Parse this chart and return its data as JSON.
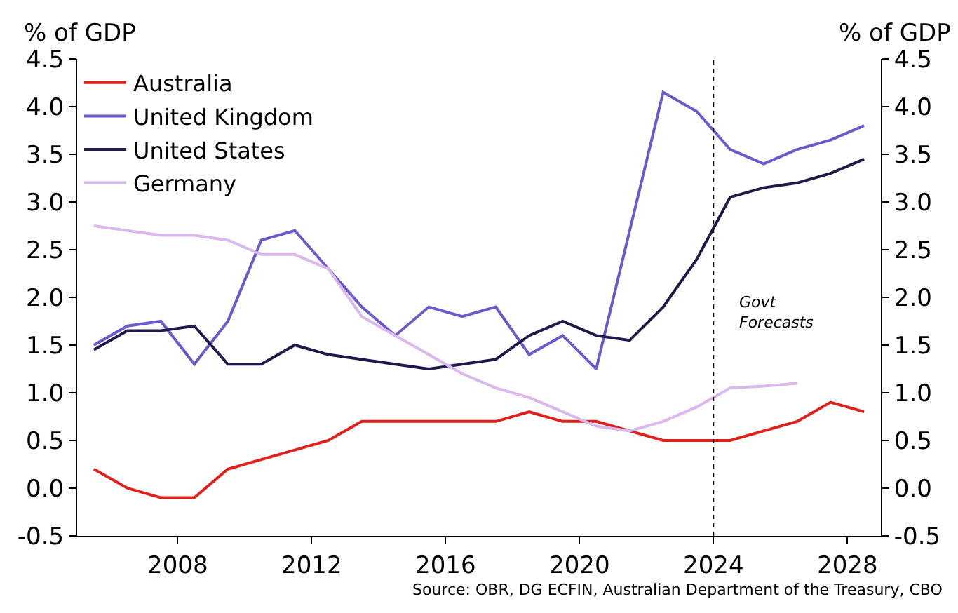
{
  "chart_data": {
    "type": "line",
    "x": [
      2005.5,
      2006.5,
      2007.5,
      2008.5,
      2009.5,
      2010.5,
      2011.5,
      2012.5,
      2013.5,
      2014.5,
      2015.5,
      2016.5,
      2017.5,
      2018.5,
      2019.5,
      2020.5,
      2021.5,
      2022.5,
      2023.5,
      2024.5,
      2025.5,
      2026.5,
      2027.5,
      2028.5
    ],
    "series": [
      {
        "name": "Australia",
        "color": "#e0201b",
        "values": [
          0.2,
          0.0,
          -0.1,
          -0.1,
          0.2,
          0.3,
          0.4,
          0.5,
          0.7,
          0.7,
          0.7,
          0.7,
          0.7,
          0.8,
          0.7,
          0.7,
          0.6,
          0.5,
          0.5,
          0.5,
          0.6,
          0.7,
          0.9,
          0.8
        ]
      },
      {
        "name": "United Kingdom",
        "color": "#6a5acd",
        "values": [
          1.5,
          1.7,
          1.75,
          1.3,
          1.75,
          2.6,
          2.7,
          2.3,
          1.9,
          1.6,
          1.9,
          1.8,
          1.9,
          1.4,
          1.6,
          1.25,
          2.7,
          4.15,
          3.95,
          3.55,
          3.4,
          3.55,
          3.65,
          3.8
        ]
      },
      {
        "name": "United States",
        "color": "#1f1a4a",
        "values": [
          1.45,
          1.65,
          1.65,
          1.7,
          1.3,
          1.3,
          1.5,
          1.4,
          1.35,
          1.3,
          1.25,
          1.3,
          1.35,
          1.6,
          1.75,
          1.6,
          1.55,
          1.9,
          2.4,
          3.05,
          3.15,
          3.2,
          3.3,
          3.45
        ]
      },
      {
        "name": "Germany",
        "color": "#d9b8ee",
        "values": [
          2.75,
          2.7,
          2.65,
          2.65,
          2.6,
          2.45,
          2.45,
          2.3,
          1.8,
          1.6,
          1.4,
          1.2,
          1.05,
          0.95,
          0.8,
          0.65,
          0.6,
          0.7,
          0.85,
          1.05,
          1.07,
          1.1,
          null,
          null
        ]
      }
    ],
    "xlim": [
      2005,
      2029
    ],
    "xticks": [
      2008,
      2012,
      2016,
      2020,
      2024,
      2028
    ],
    "ylim": [
      -0.5,
      4.5
    ],
    "yticks": [
      -0.5,
      {
        "value": 0,
        "label": "0.0"
      },
      0.5,
      {
        "value": 1,
        "label": "1.0"
      },
      1.5,
      {
        "value": 2,
        "label": "2.0"
      },
      2.5,
      {
        "value": 3,
        "label": "3.0"
      },
      3.5,
      {
        "value": 4,
        "label": "4.0"
      },
      4.5
    ],
    "y2lim": [
      -0.5,
      4.5
    ],
    "y2ticks": [
      -0.5,
      {
        "value": 0,
        "label": "0.0"
      },
      0.5,
      {
        "value": 1,
        "label": "1.0"
      },
      1.5,
      {
        "value": 2,
        "label": "2.0"
      },
      2.5,
      {
        "value": 3,
        "label": "3.0"
      },
      3.5,
      {
        "value": 4,
        "label": "4.0"
      },
      4.5
    ],
    "ylabel": "% of GDP",
    "y2label": "% of GDP",
    "ref_lines": [
      {
        "axis": "x",
        "value": 2024,
        "line_style": "dotted",
        "color": "#000000"
      }
    ],
    "annotations": [
      "Govt\nForecasts",
      "Source: OBR, DG ECFIN, Australian Department of the Treasury, CBO"
    ],
    "legend": "top left",
    "marker": "none",
    "line_style": "solid"
  }
}
